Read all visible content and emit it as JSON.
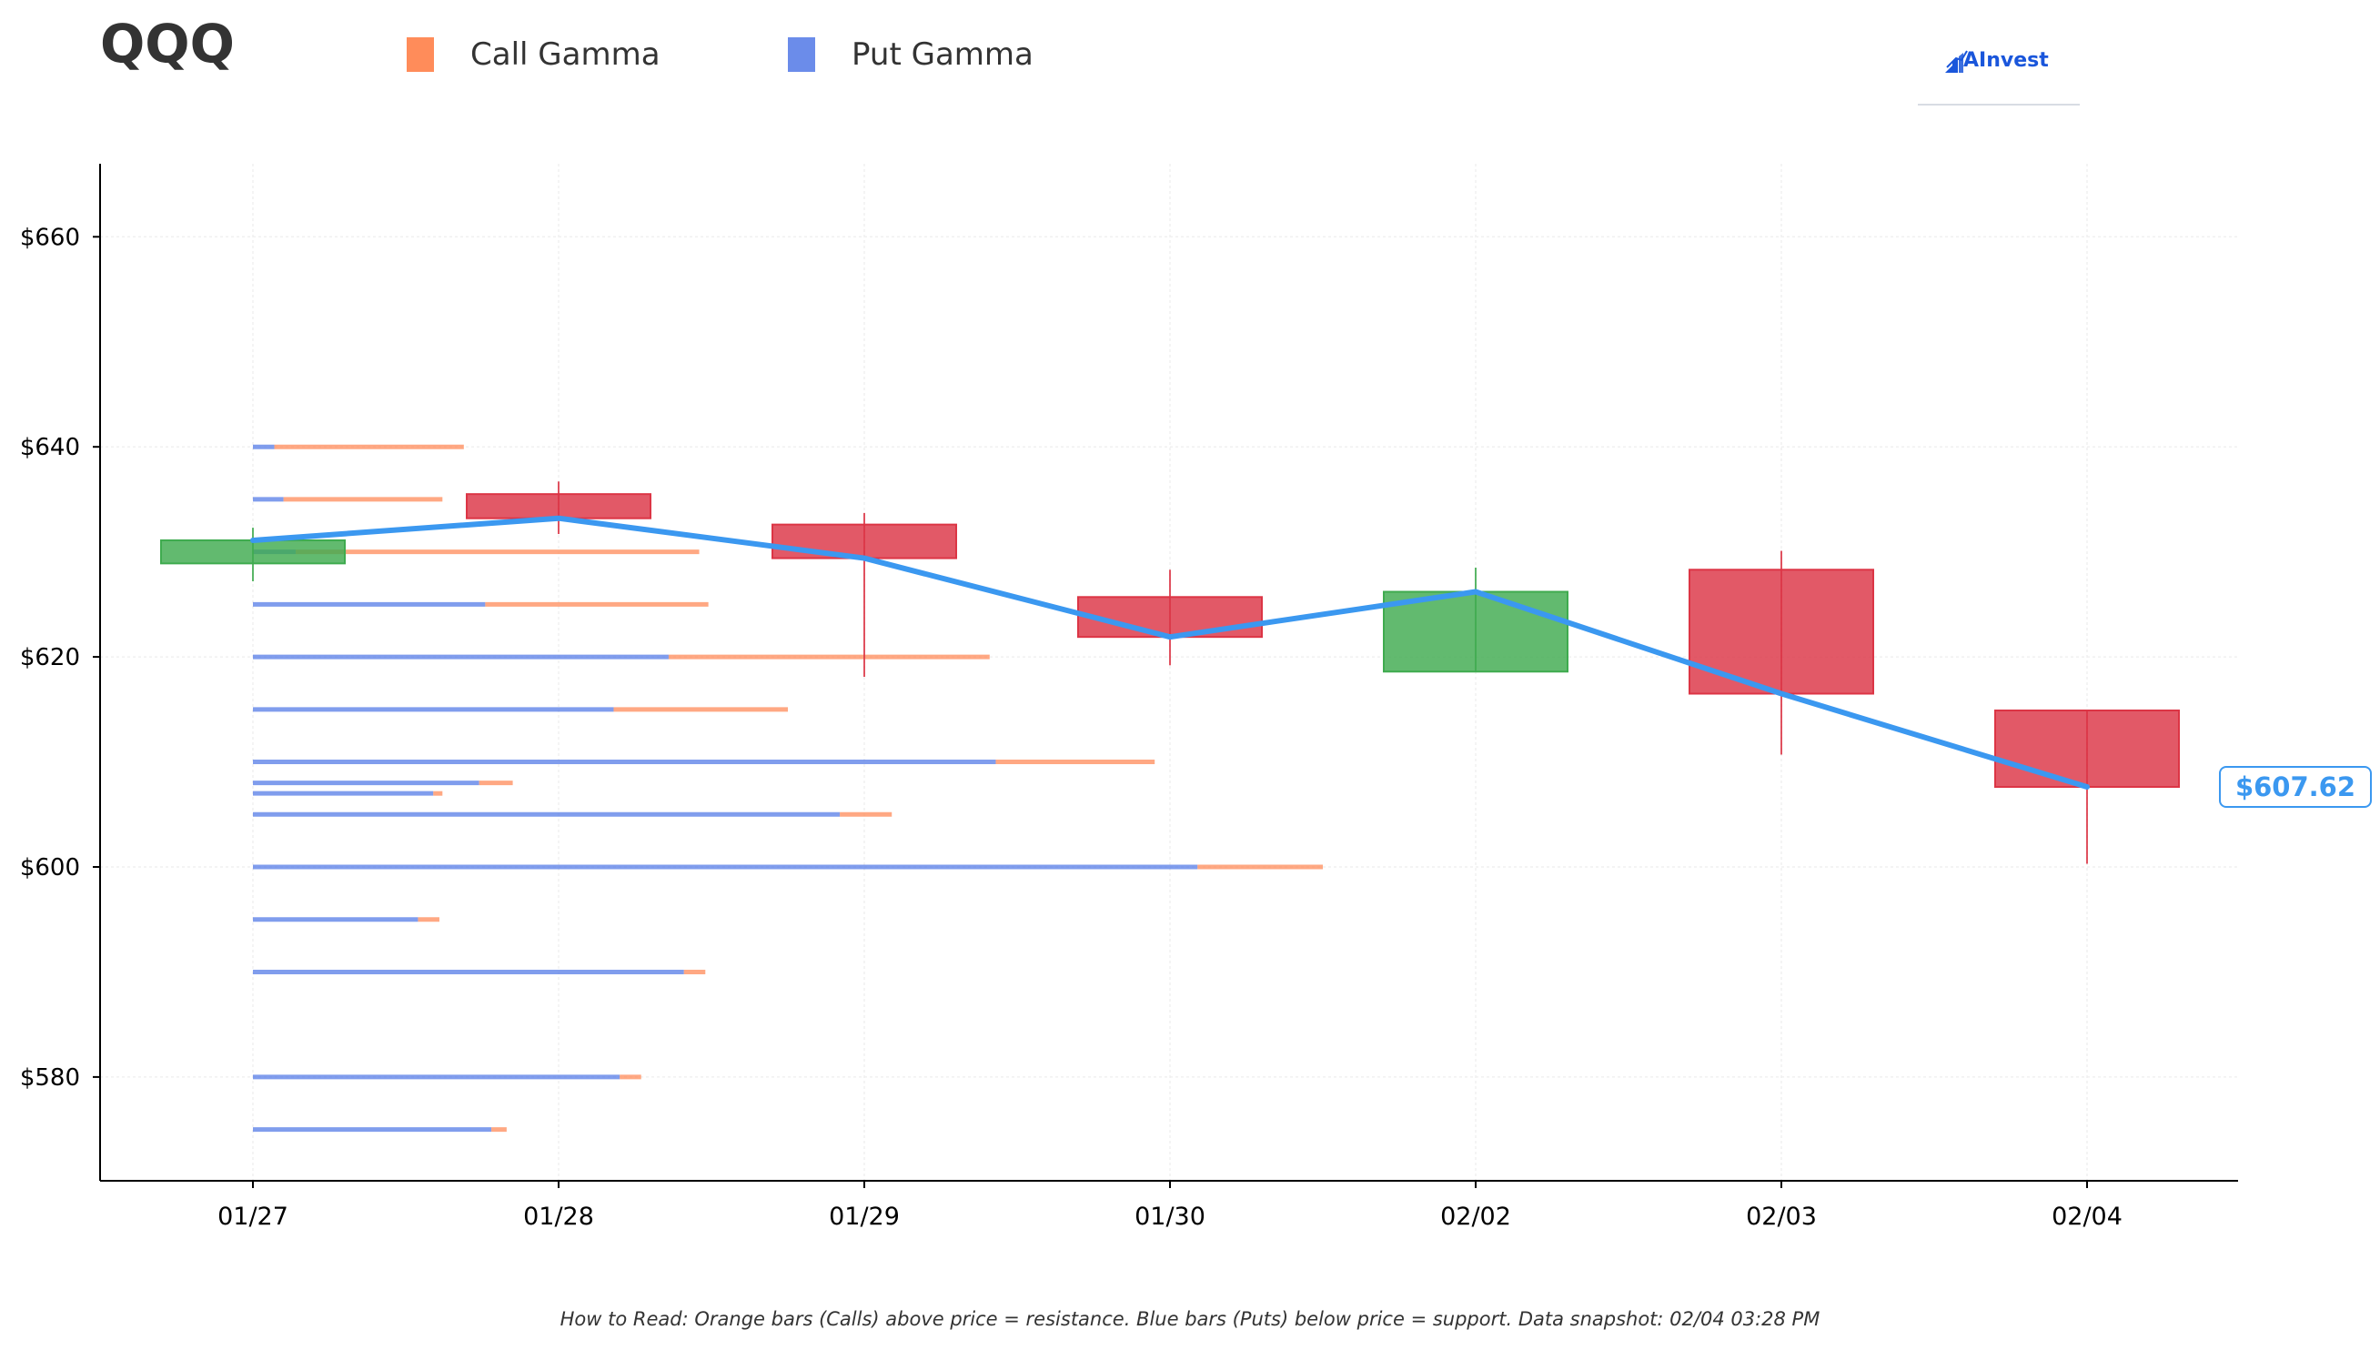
{
  "chart_data": {
    "type": "candlestick",
    "title": "QQQ",
    "xlabel": "",
    "ylabel": "",
    "legend": {
      "placement": "top-left",
      "items": [
        {
          "label": "Call Gamma",
          "color": "#ff8c5a"
        },
        {
          "label": "Put Gamma",
          "color": "#6b8cea"
        }
      ]
    },
    "categories": [
      "01/27",
      "01/28",
      "01/29",
      "01/30",
      "02/02",
      "02/03",
      "02/04"
    ],
    "ohlc": [
      {
        "date": "01/27",
        "open": 628.9,
        "high": 632.3,
        "low": 627.2,
        "close": 631.1
      },
      {
        "date": "01/28",
        "open": 635.5,
        "high": 636.7,
        "low": 631.7,
        "close": 633.2
      },
      {
        "date": "01/29",
        "open": 632.6,
        "high": 633.7,
        "low": 618.1,
        "close": 629.4
      },
      {
        "date": "01/30",
        "open": 625.7,
        "high": 628.3,
        "low": 619.2,
        "close": 621.9
      },
      {
        "date": "02/02",
        "open": 618.6,
        "high": 628.5,
        "low": 618.6,
        "close": 626.2
      },
      {
        "date": "02/03",
        "open": 628.3,
        "high": 630.1,
        "low": 610.7,
        "close": 616.5
      },
      {
        "date": "02/04",
        "open": 614.9,
        "high": 614.9,
        "low": 600.3,
        "close": 607.62
      }
    ],
    "price_line": [
      631.1,
      633.2,
      629.4,
      621.9,
      626.2,
      616.5,
      607.62
    ],
    "last_price_label": "$607.62",
    "gamma_levels": [
      {
        "strike": 640,
        "put": 0.07,
        "call": 0.62
      },
      {
        "strike": 635,
        "put": 0.1,
        "call": 0.52
      },
      {
        "strike": 630,
        "put": 0.14,
        "call": 1.32
      },
      {
        "strike": 625,
        "put": 0.76,
        "call": 0.73
      },
      {
        "strike": 620,
        "put": 1.36,
        "call": 1.05
      },
      {
        "strike": 615,
        "put": 1.18,
        "call": 0.57
      },
      {
        "strike": 610,
        "put": 2.43,
        "call": 0.52
      },
      {
        "strike": 608,
        "put": 0.74,
        "call": 0.11
      },
      {
        "strike": 607,
        "put": 0.59,
        "call": 0.03
      },
      {
        "strike": 605,
        "put": 1.92,
        "call": 0.17
      },
      {
        "strike": 600,
        "put": 3.09,
        "call": 0.41
      },
      {
        "strike": 595,
        "put": 0.54,
        "call": 0.07
      },
      {
        "strike": 590,
        "put": 1.41,
        "call": 0.07
      },
      {
        "strike": 580,
        "put": 1.2,
        "call": 0.07
      },
      {
        "strike": 575,
        "put": 0.78,
        "call": 0.05
      }
    ],
    "gamma_bar_scale_days": 1,
    "ylim": [
      570,
      667
    ],
    "yticks": [
      580,
      600,
      620,
      640,
      660
    ],
    "ytick_prefix": "$",
    "grid": true,
    "colors": {
      "up": "#3fab4f",
      "down": "#dc3545",
      "line": "#3b98f0",
      "call": "#ff8c5a",
      "put": "#6b8cea"
    }
  },
  "brand": {
    "name": "AInvest"
  },
  "footnote": "How to Read: Orange bars (Calls) above price = resistance. Blue bars (Puts) below price = support. Data snapshot: 02/04 03:28 PM"
}
